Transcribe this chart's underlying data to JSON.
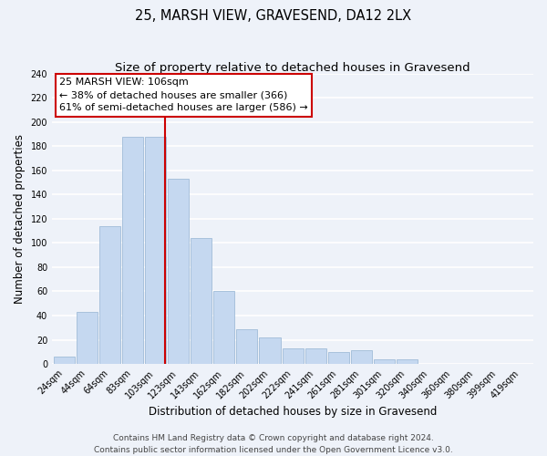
{
  "title": "25, MARSH VIEW, GRAVESEND, DA12 2LX",
  "subtitle": "Size of property relative to detached houses in Gravesend",
  "xlabel": "Distribution of detached houses by size in Gravesend",
  "ylabel": "Number of detached properties",
  "bar_labels": [
    "24sqm",
    "44sqm",
    "64sqm",
    "83sqm",
    "103sqm",
    "123sqm",
    "143sqm",
    "162sqm",
    "182sqm",
    "202sqm",
    "222sqm",
    "241sqm",
    "261sqm",
    "281sqm",
    "301sqm",
    "320sqm",
    "340sqm",
    "360sqm",
    "380sqm",
    "399sqm",
    "419sqm"
  ],
  "bar_values": [
    6,
    43,
    114,
    188,
    188,
    153,
    104,
    60,
    29,
    22,
    13,
    13,
    10,
    11,
    4,
    4,
    0,
    0,
    0,
    0,
    0
  ],
  "bar_color": "#c5d8f0",
  "bar_edge_color": "#a0bcd8",
  "vline_color": "#cc0000",
  "annotation_title": "25 MARSH VIEW: 106sqm",
  "annotation_line1": "← 38% of detached houses are smaller (366)",
  "annotation_line2": "61% of semi-detached houses are larger (586) →",
  "annotation_box_color": "#ffffff",
  "annotation_box_edge": "#cc0000",
  "ylim": [
    0,
    240
  ],
  "yticks": [
    0,
    20,
    40,
    60,
    80,
    100,
    120,
    140,
    160,
    180,
    200,
    220,
    240
  ],
  "background_color": "#eef2f9",
  "grid_color": "#ffffff",
  "title_fontsize": 10.5,
  "subtitle_fontsize": 9.5,
  "axis_label_fontsize": 8.5,
  "tick_fontsize": 7,
  "footer_fontsize": 6.5,
  "footer1": "Contains HM Land Registry data © Crown copyright and database right 2024.",
  "footer2": "Contains public sector information licensed under the Open Government Licence v3.0."
}
